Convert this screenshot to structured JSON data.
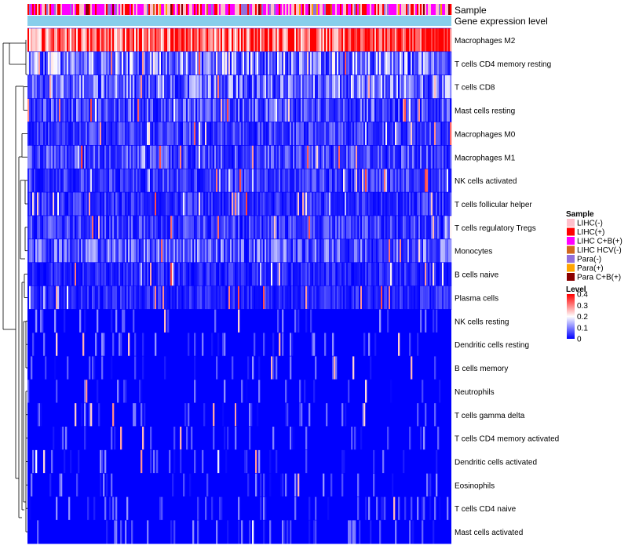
{
  "chart_data": {
    "type": "heatmap",
    "annotation_tracks": [
      "Sample",
      "Gene expression level"
    ],
    "rows": [
      "Macrophages M2",
      "T cells CD4 memory resting",
      "T cells CD8",
      "Mast cells resting",
      "Macrophages M0",
      "Macrophages M1",
      "NK cells activated",
      "T cells follicular helper",
      "T cells regulatory  Tregs",
      "Monocytes",
      "B cells naive",
      "Plasma cells",
      "NK cells resting",
      "Dendritic cells resting",
      "B cells memory",
      "Neutrophils",
      "T cells gamma delta",
      "T cells CD4 memory activated",
      "Dendritic cells activated",
      "Eosinophils",
      "T cells CD4 naive",
      "Mast cells activated"
    ],
    "row_mean_level": [
      0.33,
      0.13,
      0.11,
      0.08,
      0.06,
      0.07,
      0.06,
      0.05,
      0.06,
      0.09,
      0.04,
      0.04,
      0.03,
      0.02,
      0.02,
      0.01,
      0.01,
      0.01,
      0.005,
      0.005,
      0.005,
      0.005
    ],
    "sample_legend": {
      "title": "Sample",
      "items": [
        {
          "label": "LIHC(-)",
          "color": "#FFC0CB"
        },
        {
          "label": "LIHC(+)",
          "color": "#FF0000"
        },
        {
          "label": "LIHC C+B(+)",
          "color": "#FF00FF"
        },
        {
          "label": "LIHC HCV(-)",
          "color": "#D2691E"
        },
        {
          "label": "Para(-)",
          "color": "#9370DB"
        },
        {
          "label": "Para(+)",
          "color": "#FFA500"
        },
        {
          "label": "Para C+B(+)",
          "color": "#8B0000"
        }
      ]
    },
    "level_legend": {
      "title": "Level",
      "ticks": [
        "0.4",
        "0.3",
        "0.2",
        "0.1",
        "0"
      ],
      "tick_values": [
        0.4,
        0.3,
        0.2,
        0.1,
        0
      ],
      "range": [
        0,
        0.4
      ],
      "colors": [
        "#0000FF",
        "#FFFFFF",
        "#FF0000"
      ]
    },
    "gene_expression_color": "#87CEEB"
  }
}
